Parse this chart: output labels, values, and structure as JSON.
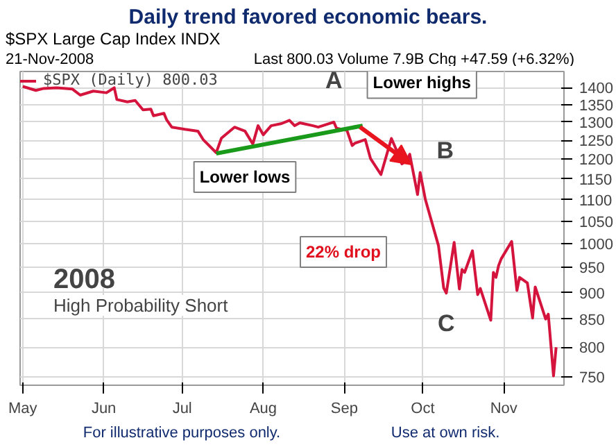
{
  "chart_data": {
    "type": "line",
    "title": "Daily trend favored economic bears.",
    "subtitle": "$SPX Large Cap Index INDX",
    "x": [
      "2008-05-01",
      "2008-05-06",
      "2008-05-09",
      "2008-05-14",
      "2008-05-20",
      "2008-05-23",
      "2008-05-28",
      "2008-06-02",
      "2008-06-05",
      "2008-06-06",
      "2008-06-10",
      "2008-06-13",
      "2008-06-16",
      "2008-06-19",
      "2008-06-20",
      "2008-06-24",
      "2008-06-25",
      "2008-06-27",
      "2008-07-02",
      "2008-07-07",
      "2008-07-09",
      "2008-07-14",
      "2008-07-16",
      "2008-07-21",
      "2008-07-25",
      "2008-07-28",
      "2008-07-30",
      "2008-08-01",
      "2008-08-04",
      "2008-08-08",
      "2008-08-11",
      "2008-08-13",
      "2008-08-15",
      "2008-08-20",
      "2008-08-22",
      "2008-08-28",
      "2008-08-29",
      "2008-09-02",
      "2008-09-04",
      "2008-09-05",
      "2008-09-09",
      "2008-09-11",
      "2008-09-15",
      "2008-09-19",
      "2008-09-22",
      "2008-09-23",
      "2008-09-25",
      "2008-09-26",
      "2008-09-29",
      "2008-09-30",
      "2008-10-02",
      "2008-10-07",
      "2008-10-09",
      "2008-10-10",
      "2008-10-13",
      "2008-10-15",
      "2008-10-16",
      "2008-10-17",
      "2008-10-20",
      "2008-10-22",
      "2008-10-23",
      "2008-10-27",
      "2008-10-28",
      "2008-10-29",
      "2008-10-30",
      "2008-10-31",
      "2008-11-04",
      "2008-11-06",
      "2008-11-07",
      "2008-11-10",
      "2008-11-12",
      "2008-11-13",
      "2008-11-17",
      "2008-11-18",
      "2008-11-20",
      "2008-11-21"
    ],
    "series": [
      {
        "name": "$SPX (Daily) 800.03",
        "color": "#d4143c",
        "values": [
          1404,
          1392,
          1398,
          1400,
          1396,
          1378,
          1390,
          1385,
          1400,
          1365,
          1358,
          1362,
          1335,
          1337,
          1318,
          1325,
          1307,
          1286,
          1280,
          1275,
          1252,
          1217,
          1256,
          1286,
          1275,
          1240,
          1290,
          1265,
          1290,
          1296,
          1305,
          1290,
          1298,
          1290,
          1286,
          1300,
          1283,
          1277,
          1236,
          1242,
          1252,
          1202,
          1161,
          1255,
          1207,
          1188,
          1196,
          1213,
          1112,
          1166,
          1100,
          996,
          909,
          899,
          1003,
          907,
          946,
          940,
          985,
          896,
          908,
          848,
          940,
          930,
          954,
          968,
          1005,
          904,
          930,
          919,
          852,
          911,
          850,
          859,
          752,
          800
        ]
      },
      {
        "type": "line",
        "color": "#1a9a1a",
        "x": [
          "2008-07-14",
          "2008-09-08"
        ],
        "values": [
          1215,
          1290
        ]
      }
    ],
    "annotations": [
      "2008",
      "High Probability Short",
      "21-Nov-2008",
      "Last 800.03 Volume 7.9B Chg +47.59 (+6.32%)",
      "For illustrative purposes only.",
      "Use at own risk.",
      "Lower lows",
      "22% drop",
      {
        "text": "A",
        "x": "2008-08-28",
        "y": 1300
      },
      {
        "text": "B",
        "x": "2008-09-30",
        "y": 1166
      },
      {
        "text": "C",
        "x": "2008-10-10",
        "y": 899
      },
      {
        "text": "Lower highs",
        "x": "2008-09-19",
        "y": 1255
      }
    ],
    "xlim": [
      "2008-04-30",
      "2008-11-24"
    ],
    "xticks": [
      {
        "value": "2008-05-01",
        "label": "May"
      },
      {
        "value": "2008-06-01",
        "label": "Jun"
      },
      {
        "value": "2008-07-01",
        "label": "Jul"
      },
      {
        "value": "2008-08-01",
        "label": "Aug"
      },
      {
        "value": "2008-09-01",
        "label": "Sep"
      },
      {
        "value": "2008-10-01",
        "label": "Oct"
      },
      {
        "value": "2008-11-01",
        "label": "Nov"
      }
    ],
    "ylim": [
      737,
      1450
    ],
    "yticks": [
      750,
      800,
      850,
      900,
      950,
      1000,
      1050,
      1100,
      1150,
      1200,
      1250,
      1300,
      1350,
      1400
    ],
    "log": true,
    "grid": true,
    "legend": "top left"
  }
}
